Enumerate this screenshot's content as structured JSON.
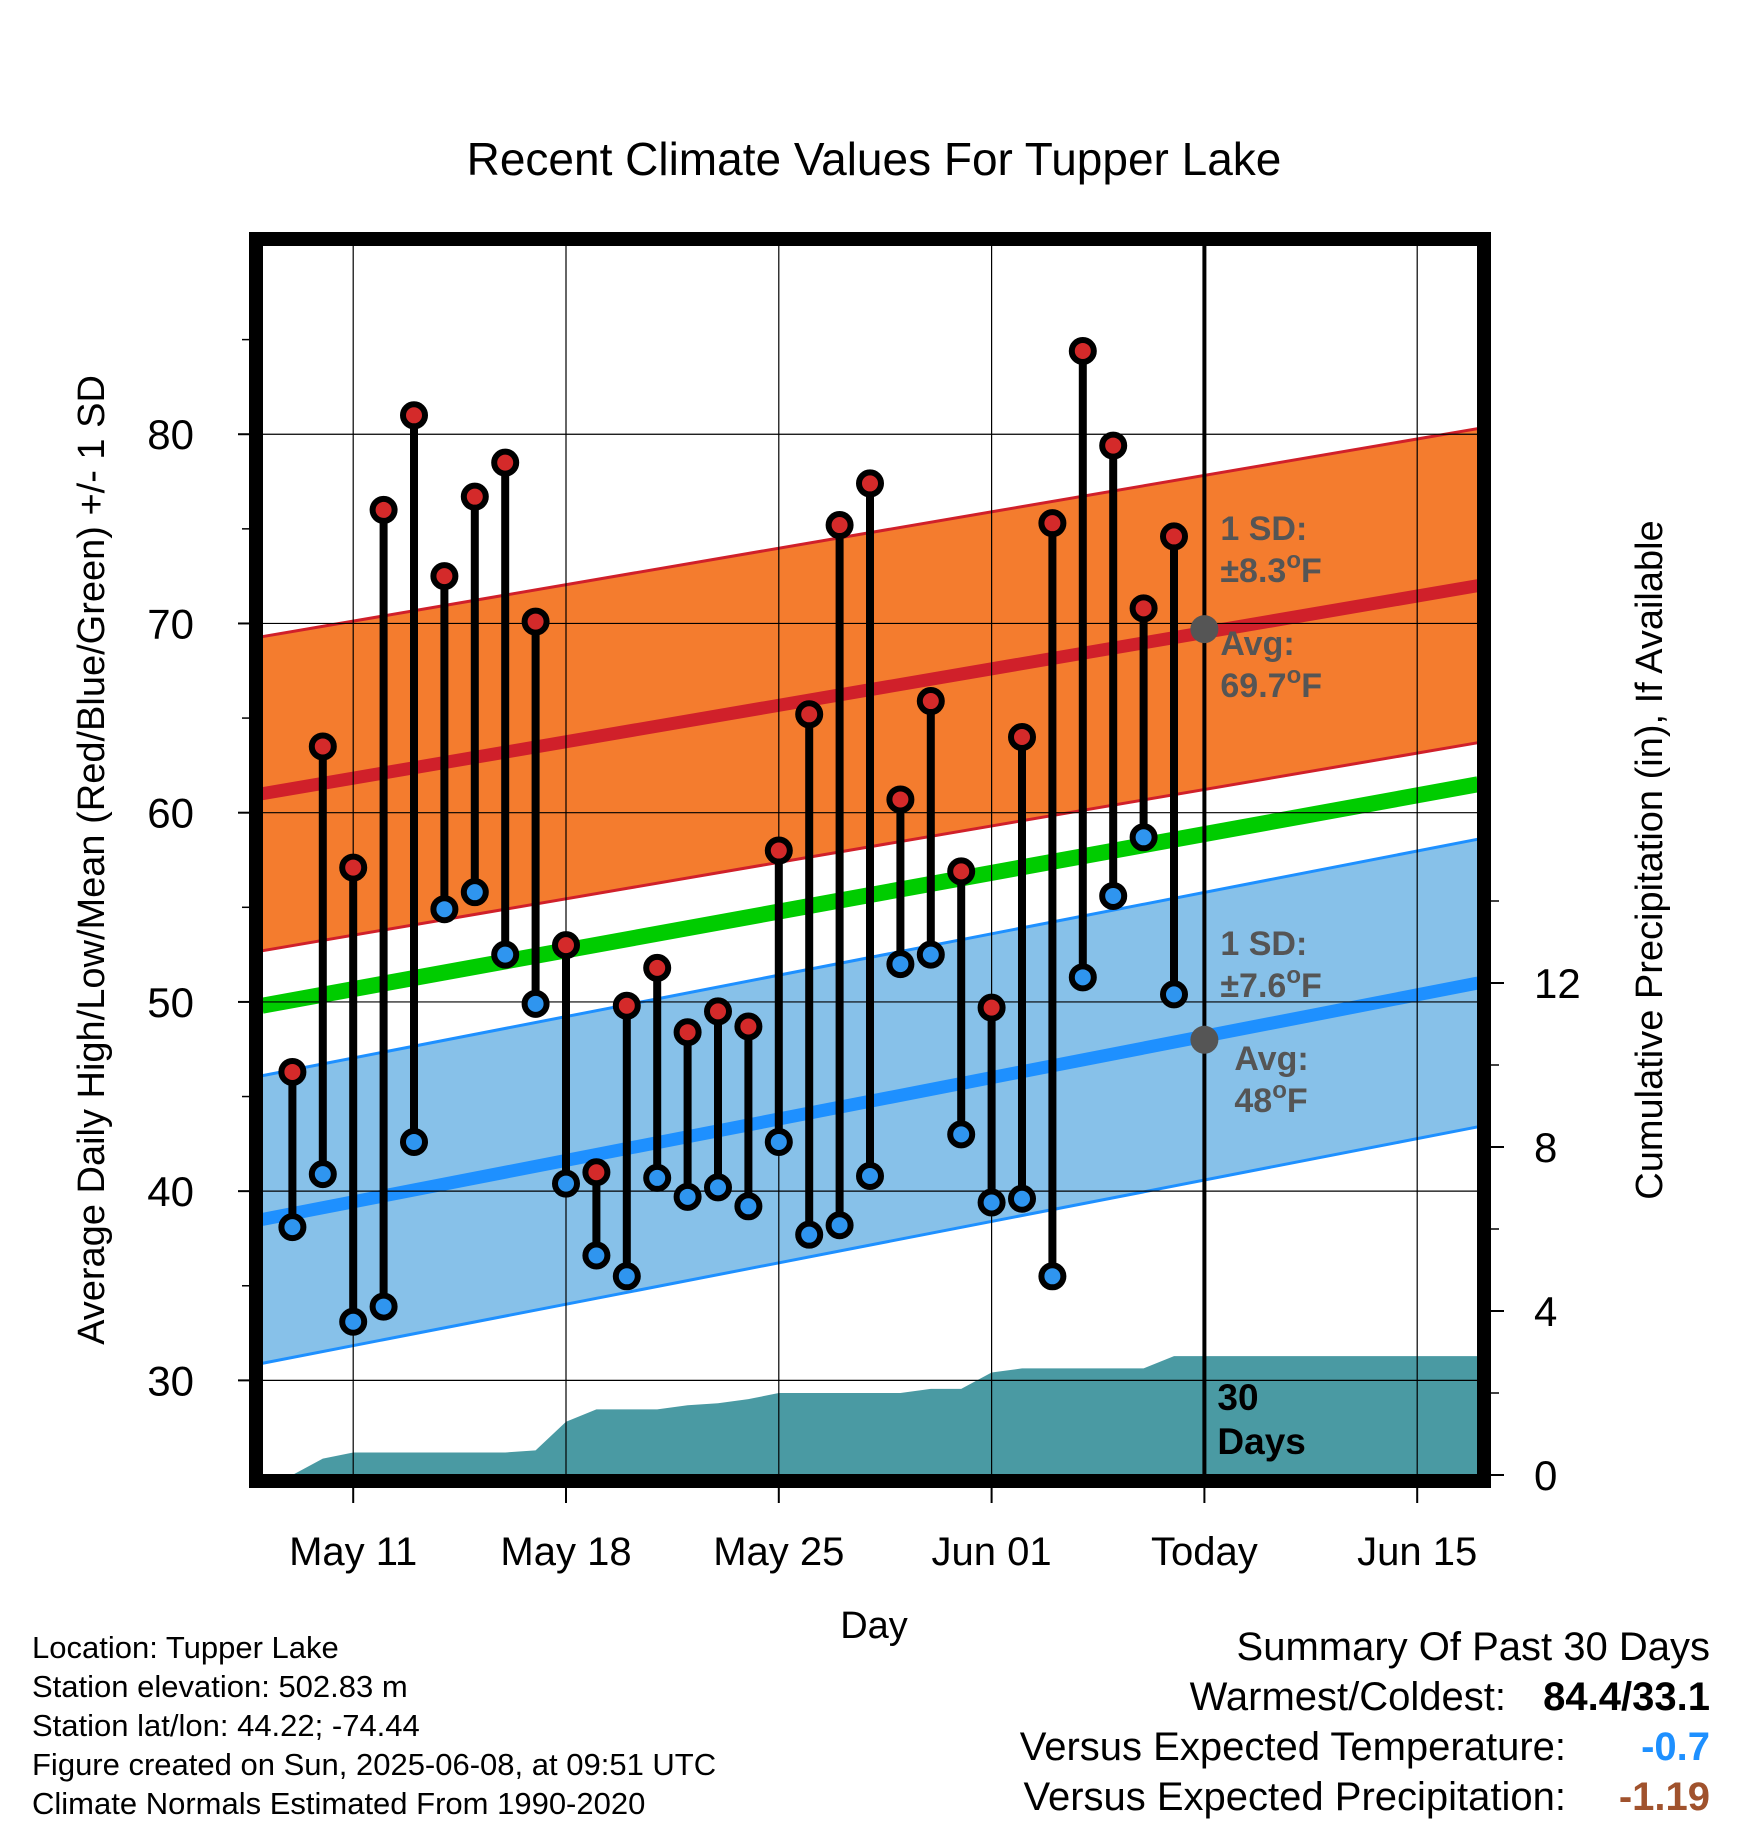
{
  "chart_data": {
    "type": "line",
    "title": "Recent Climate Values For Tupper Lake",
    "xlabel": "Day",
    "ylabel_left": "Average Daily High/Low/Mean (Red/Blue/Green) +/- 1 SD",
    "ylabel_right": "Cumulative Precipitation (in), If Available",
    "x_start": "2025-05-08",
    "x_end": "2025-06-17",
    "x_ticks": [
      "May 11",
      "May 18",
      "May 25",
      "Jun 01",
      "Today",
      "Jun 15"
    ],
    "ylim_left": [
      25,
      90
    ],
    "y_ticks_left": [
      30,
      40,
      50,
      60,
      70,
      80
    ],
    "ylim_right": [
      0,
      30
    ],
    "y_ticks_right": [
      0,
      4,
      8,
      12
    ],
    "grid": true,
    "days": [
      "2025-05-09",
      "2025-05-10",
      "2025-05-11",
      "2025-05-12",
      "2025-05-13",
      "2025-05-14",
      "2025-05-15",
      "2025-05-16",
      "2025-05-17",
      "2025-05-18",
      "2025-05-19",
      "2025-05-20",
      "2025-05-21",
      "2025-05-22",
      "2025-05-23",
      "2025-05-24",
      "2025-05-25",
      "2025-05-26",
      "2025-05-27",
      "2025-05-28",
      "2025-05-29",
      "2025-05-30",
      "2025-05-31",
      "2025-06-01",
      "2025-06-02",
      "2025-06-03",
      "2025-06-04",
      "2025-06-05",
      "2025-06-06",
      "2025-06-07"
    ],
    "daily_high": [
      46.3,
      63.5,
      57.1,
      76.0,
      81.0,
      72.5,
      76.7,
      78.5,
      70.1,
      53.0,
      41.0,
      49.8,
      51.8,
      48.4,
      49.5,
      48.7,
      58.0,
      65.2,
      75.2,
      77.4,
      60.7,
      65.9,
      56.9,
      49.7,
      64.0,
      75.3,
      84.4,
      79.4,
      70.8,
      74.6
    ],
    "daily_low": [
      38.1,
      40.9,
      33.1,
      33.9,
      42.6,
      54.9,
      55.8,
      52.5,
      49.9,
      40.4,
      36.6,
      35.5,
      40.7,
      39.7,
      40.2,
      39.2,
      42.6,
      37.7,
      38.2,
      40.8,
      52.0,
      52.5,
      43.0,
      39.4,
      39.6,
      35.5,
      51.3,
      55.6,
      58.7,
      50.4
    ],
    "normal_high": {
      "start": 61.0,
      "end": 72.0,
      "sd": 8.3,
      "avg_today": 69.7,
      "label": "Avg:",
      "value_label": "69.7°F",
      "sd_label": "1 SD:",
      "sd_value_label": "±8.3°F"
    },
    "normal_low": {
      "start": 38.5,
      "end": 51.0,
      "sd": 7.6,
      "avg_today": 48,
      "label": "Avg:",
      "value_label": "48°F",
      "sd_label": "1 SD:",
      "sd_value_label": "±7.6°F"
    },
    "normal_mean": {
      "start": 49.8,
      "end": 61.5
    },
    "cumulative_precip": [
      0.0,
      0.4,
      0.55,
      0.55,
      0.55,
      0.55,
      0.55,
      0.55,
      0.6,
      1.3,
      1.6,
      1.6,
      1.6,
      1.7,
      1.75,
      1.85,
      2.0,
      2.0,
      2.0,
      2.0,
      2.0,
      2.1,
      2.1,
      2.5,
      2.6,
      2.6,
      2.6,
      2.6,
      2.6,
      2.9,
      2.9
    ],
    "precip_annotation": "30 Days",
    "colors": {
      "high_band": "#f47c2e",
      "high_line": "#d0202a",
      "low_band": "#87c1e9",
      "low_line": "#1e90ff",
      "mean_line": "#00cc00",
      "precip": "#4a9aa3",
      "high_dot": "#d42a2a",
      "low_dot": "#2f95ef",
      "annotation_text": "#555555"
    }
  },
  "footer": {
    "location": "Location: Tupper Lake",
    "elevation": "Station elevation: 502.83 m",
    "latlon": "Station lat/lon: 44.22; -74.44",
    "created": "Figure created on Sun, 2025-06-08, at 09:51 UTC",
    "normals": "Climate Normals Estimated From 1990-2020"
  },
  "summary": {
    "title": "Summary Of Past 30 Days",
    "warmest_coldest_label": "Warmest/Coldest:",
    "warmest_coldest_value": "84.4/33.1",
    "temp_label": "Versus Expected Temperature:",
    "temp_value": "-0.7",
    "precip_label": "Versus Expected Precipitation:",
    "precip_value": "-1.19"
  }
}
